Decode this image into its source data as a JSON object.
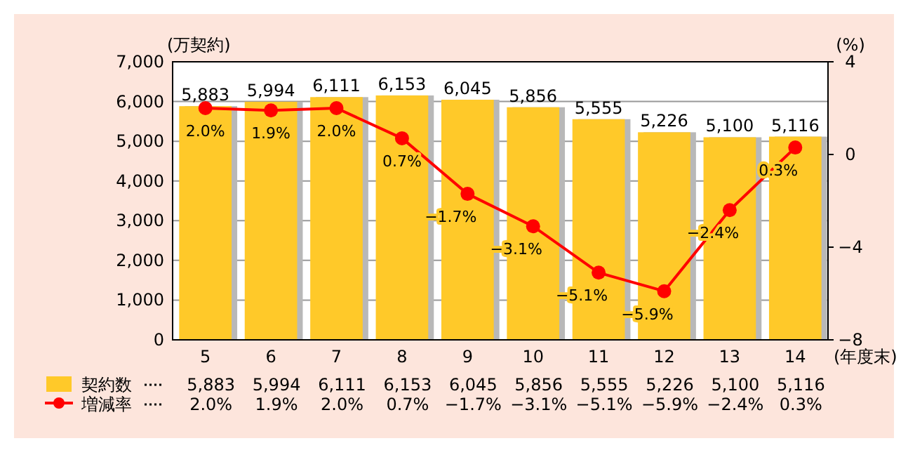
{
  "chart_data": {
    "type": "bar",
    "categories": [
      "5",
      "6",
      "7",
      "8",
      "9",
      "10",
      "11",
      "12",
      "13",
      "14"
    ],
    "xlabel": "(年度末)",
    "ylabel": "(万契約)",
    "y2label": "(%)",
    "series": [
      {
        "name": "契約数",
        "color": "#ffc929",
        "values": [
          5883,
          5994,
          6111,
          6153,
          6045,
          5856,
          5555,
          5226,
          5100,
          5116
        ],
        "value_labels": [
          "5,883",
          "5,994",
          "6,111",
          "6,153",
          "6,045",
          "5,856",
          "5,555",
          "5,226",
          "5,100",
          "5,116"
        ]
      },
      {
        "name": "増減率",
        "type": "line",
        "axis": "y2",
        "color": "#ff0000",
        "marker": "circle",
        "values": [
          2.0,
          1.9,
          2.0,
          0.7,
          -1.7,
          -3.1,
          -5.1,
          -5.9,
          -2.4,
          0.3
        ],
        "value_labels": [
          "2.0%",
          "1.9%",
          "2.0%",
          "0.7%",
          "−1.7%",
          "−3.1%",
          "−5.1%",
          "−5.9%",
          "−2.4%",
          "0.3%"
        ]
      }
    ],
    "ylim": [
      0,
      7000
    ],
    "yticks": [
      {
        "value": 0,
        "label": "0"
      },
      {
        "value": 1000,
        "label": "1,000"
      },
      {
        "value": 2000,
        "label": "2,000"
      },
      {
        "value": 3000,
        "label": "3,000"
      },
      {
        "value": 4000,
        "label": "4,000"
      },
      {
        "value": 5000,
        "label": "5,000"
      },
      {
        "value": 6000,
        "label": "6,000"
      },
      {
        "value": 7000,
        "label": "7,000"
      }
    ],
    "y2lim": [
      -8,
      4
    ],
    "y2ticks": [
      {
        "value": -8,
        "label": "−8"
      },
      {
        "value": -4,
        "label": "−4"
      },
      0,
      4
    ],
    "grid": "y",
    "legend": "bottom"
  }
}
